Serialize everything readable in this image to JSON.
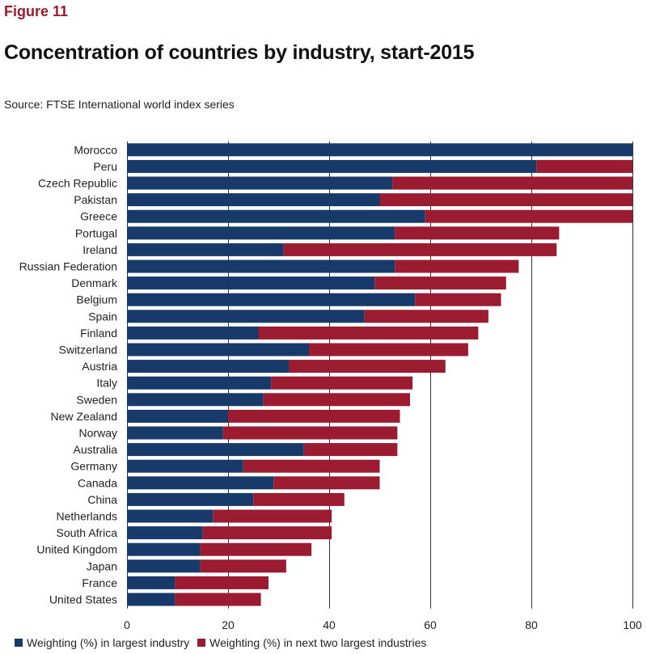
{
  "figure_label": "Figure 11",
  "source": "Source: FTSE International world index series",
  "colors": {
    "series1": "#173a6a",
    "series2": "#9b1b30",
    "gridline": "#333333",
    "label_red": "#9b1b30"
  },
  "chart_data": {
    "type": "bar",
    "orientation": "horizontal",
    "stacked": true,
    "title": "Concentration of countries by industry, start-2015",
    "xlabel": "",
    "ylabel": "",
    "xlim": [
      0,
      100
    ],
    "xticks": [
      0,
      20,
      40,
      60,
      80,
      100
    ],
    "grid": true,
    "legend_position": "bottom",
    "categories": [
      "Morocco",
      "Peru",
      "Czech Republic",
      "Pakistan",
      "Greece",
      "Portugal",
      "Ireland",
      "Russian Federation",
      "Denmark",
      "Belgium",
      "Spain",
      "Finland",
      "Switzerland",
      "Austria",
      "Italy",
      "Sweden",
      "New Zealand",
      "Norway",
      "Australia",
      "Germany",
      "Canada",
      "China",
      "Netherlands",
      "South Africa",
      "United Kingdom",
      "Japan",
      "France",
      "United States"
    ],
    "series": [
      {
        "name": "Weighting (%) in largest industry",
        "values": [
          100,
          81,
          52.5,
          50,
          59,
          53,
          31,
          53,
          49,
          57,
          47,
          26,
          36,
          32,
          28.5,
          27,
          20,
          19,
          35,
          23,
          29,
          25,
          17,
          15,
          14.5,
          14.5,
          9.5,
          9.5
        ]
      },
      {
        "name": "Weighting (%) in next two largest industries",
        "values": [
          0,
          19,
          47.5,
          50,
          41,
          32.5,
          54,
          24.5,
          26,
          17,
          24.5,
          43.5,
          31.5,
          31,
          28,
          29,
          34,
          34.5,
          18.5,
          27,
          21,
          18,
          23.5,
          25.5,
          22,
          17,
          18.5,
          17
        ]
      }
    ]
  }
}
